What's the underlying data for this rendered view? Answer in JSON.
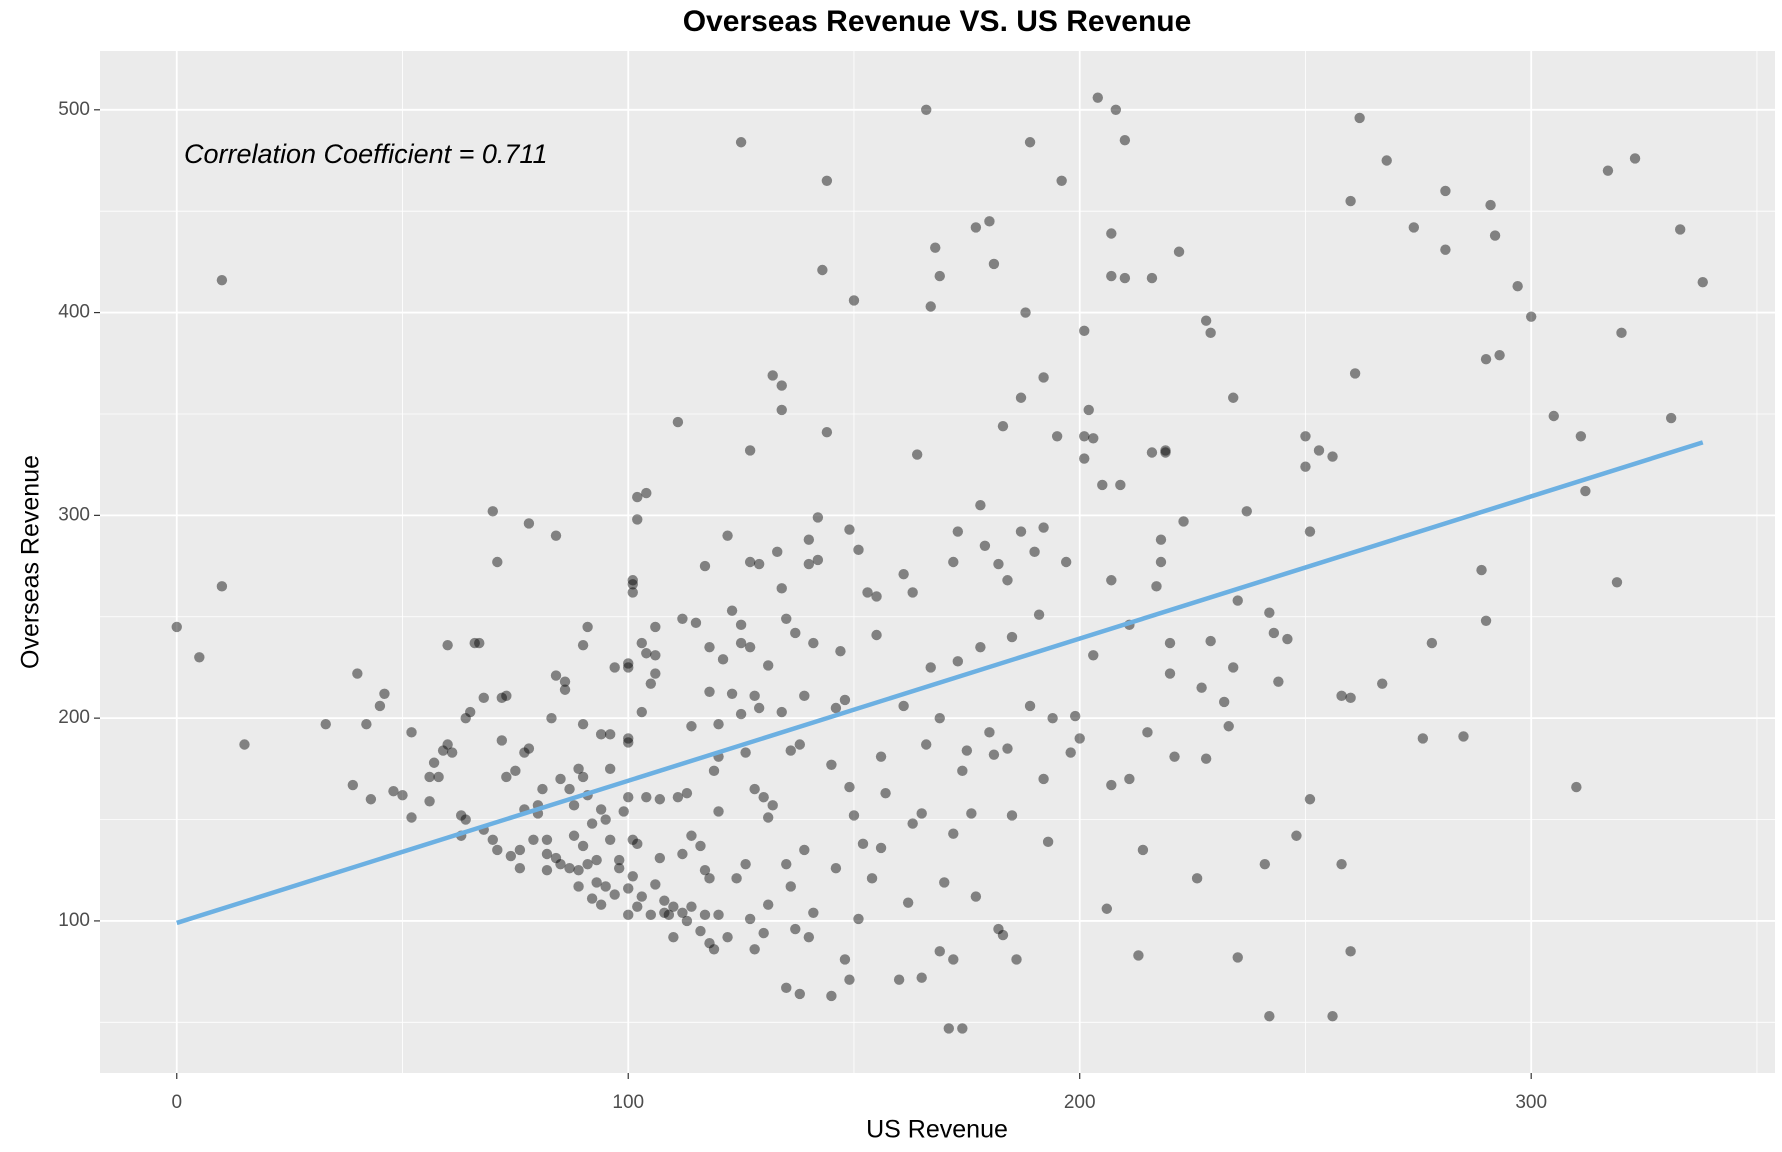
{
  "chart_data": {
    "type": "scatter",
    "title": "Overseas Revenue VS. US Revenue",
    "x_label": "US Revenue",
    "y_label": "Overseas Revenue",
    "annotation": "Correlation Coefficient = 0.711",
    "xlim": [
      -17,
      354
    ],
    "ylim": [
      25,
      529
    ],
    "xticks": [
      0,
      100,
      200,
      300
    ],
    "yticks": [
      100,
      200,
      300,
      400,
      500
    ],
    "grid": true,
    "series": [
      {
        "color": "#000000",
        "opacity": 0.45,
        "x": [
          0,
          5,
          10,
          10,
          15,
          33,
          39,
          40,
          42,
          43,
          45,
          46,
          48,
          50,
          52,
          52,
          56,
          56,
          57,
          58,
          59,
          60,
          60,
          61,
          63,
          63,
          64,
          64,
          65,
          66,
          67,
          68,
          68,
          70,
          70,
          71,
          71,
          72,
          72,
          73,
          73,
          74,
          75,
          76,
          76,
          77,
          77,
          78,
          78,
          79,
          80,
          80,
          81,
          82,
          82,
          82,
          83,
          84,
          84,
          84,
          85,
          85,
          86,
          86,
          87,
          87,
          88,
          88,
          89,
          89,
          89,
          90,
          90,
          90,
          90,
          91,
          91,
          91,
          92,
          92,
          93,
          93,
          94,
          94,
          94,
          95,
          95,
          96,
          96,
          96,
          97,
          97,
          98,
          98,
          99,
          100,
          100,
          100,
          100,
          100,
          100,
          100,
          101,
          101,
          101,
          101,
          101,
          102,
          102,
          102,
          102,
          103,
          103,
          103,
          104,
          104,
          104,
          105,
          105,
          106,
          106,
          106,
          106,
          107,
          107,
          108,
          108,
          109,
          110,
          110,
          111,
          111,
          112,
          112,
          112,
          113,
          113,
          114,
          114,
          114,
          115,
          116,
          116,
          117,
          117,
          117,
          118,
          118,
          118,
          118,
          119,
          119,
          120,
          120,
          120,
          120,
          121,
          122,
          122,
          123,
          123,
          124,
          125,
          125,
          125,
          125,
          126,
          126,
          127,
          127,
          127,
          127,
          128,
          128,
          128,
          129,
          129,
          130,
          130,
          131,
          131,
          131,
          132,
          132,
          133,
          134,
          134,
          134,
          134,
          135,
          135,
          135,
          136,
          136,
          137,
          137,
          138,
          138,
          139,
          139,
          140,
          140,
          140,
          141,
          141,
          142,
          142,
          143,
          144,
          144,
          145,
          145,
          146,
          146,
          147,
          148,
          148,
          149,
          149,
          149,
          150,
          150,
          151,
          151,
          152,
          153,
          154,
          155,
          155,
          156,
          156,
          157,
          160,
          161,
          161,
          162,
          163,
          163,
          164,
          165,
          165,
          166,
          166,
          167,
          167,
          168,
          169,
          169,
          169,
          170,
          171,
          172,
          172,
          172,
          173,
          173,
          174,
          174,
          175,
          176,
          177,
          177,
          178,
          178,
          179,
          180,
          180,
          181,
          181,
          182,
          182,
          183,
          183,
          184,
          184,
          185,
          185,
          186,
          187,
          187,
          188,
          189,
          189,
          190,
          191,
          192,
          192,
          192,
          193,
          194,
          195,
          196,
          197,
          198,
          199,
          200,
          201,
          201,
          201,
          202,
          203,
          203,
          204,
          205,
          206,
          207,
          207,
          207,
          207,
          208,
          209,
          210,
          210,
          211,
          211,
          213,
          214,
          215,
          216,
          216,
          217,
          218,
          218,
          219,
          219,
          220,
          220,
          221,
          222,
          223,
          226,
          227,
          228,
          228,
          229,
          229,
          232,
          233,
          234,
          234,
          235,
          235,
          237,
          241,
          242,
          242,
          243,
          244,
          246,
          248,
          250,
          250,
          251,
          251,
          253,
          256,
          256,
          258,
          258,
          260,
          260,
          260,
          261,
          262,
          267,
          268,
          274,
          276,
          278,
          281,
          281,
          285,
          289,
          290,
          290,
          291,
          292,
          293,
          297,
          300,
          305,
          310,
          311,
          312,
          317,
          319,
          320,
          323,
          331,
          333,
          338
        ],
        "values": [
          245,
          230,
          416,
          265,
          187,
          197,
          167,
          222,
          197,
          160,
          206,
          212,
          164,
          162,
          151,
          193,
          171,
          159,
          178,
          171,
          184,
          236,
          187,
          183,
          152,
          142,
          150,
          200,
          203,
          237,
          237,
          210,
          145,
          302,
          140,
          277,
          135,
          210,
          189,
          171,
          211,
          132,
          174,
          126,
          135,
          155,
          183,
          185,
          296,
          140,
          157,
          153,
          165,
          140,
          133,
          125,
          200,
          131,
          290,
          221,
          170,
          128,
          214,
          218,
          165,
          126,
          157,
          142,
          175,
          117,
          125,
          197,
          236,
          171,
          137,
          245,
          162,
          128,
          148,
          111,
          130,
          119,
          192,
          155,
          108,
          150,
          117,
          192,
          175,
          140,
          225,
          113,
          130,
          126,
          154,
          227,
          225,
          190,
          188,
          161,
          103,
          116,
          268,
          266,
          262,
          140,
          122,
          309,
          298,
          138,
          107,
          237,
          203,
          112,
          232,
          311,
          161,
          217,
          103,
          245,
          231,
          222,
          118,
          160,
          131,
          104,
          110,
          103,
          92,
          107,
          346,
          161,
          249,
          104,
          133,
          163,
          100,
          196,
          142,
          107,
          247,
          137,
          95,
          275,
          125,
          103,
          235,
          213,
          121,
          89,
          174,
          86,
          197,
          181,
          154,
          103,
          229,
          290,
          92,
          253,
          212,
          121,
          484,
          246,
          237,
          202,
          183,
          128,
          332,
          277,
          235,
          101,
          211,
          165,
          86,
          276,
          205,
          94,
          161,
          226,
          151,
          108,
          369,
          157,
          282,
          364,
          352,
          264,
          203,
          249,
          128,
          67,
          184,
          117,
          242,
          96,
          187,
          64,
          211,
          135,
          288,
          276,
          92,
          237,
          104,
          278,
          299,
          421,
          341,
          465,
          177,
          63,
          205,
          126,
          233,
          209,
          81,
          293,
          166,
          71,
          406,
          152,
          283,
          101,
          138,
          262,
          121,
          260,
          241,
          181,
          136,
          163,
          71,
          271,
          206,
          109,
          262,
          148,
          330,
          72,
          153,
          187,
          500,
          403,
          225,
          432,
          200,
          418,
          85,
          119,
          47,
          277,
          143,
          81,
          292,
          228,
          47,
          174,
          184,
          153,
          112,
          442,
          305,
          235,
          285,
          445,
          193,
          424,
          182,
          276,
          96,
          93,
          344,
          268,
          185,
          240,
          152,
          81,
          292,
          358,
          400,
          484,
          206,
          282,
          251,
          368,
          294,
          170,
          139,
          200,
          339,
          465,
          277,
          183,
          201,
          190,
          339,
          328,
          391,
          352,
          338,
          231,
          506,
          315,
          106,
          439,
          418,
          167,
          268,
          500,
          315,
          485,
          417,
          246,
          170,
          83,
          135,
          193,
          331,
          417,
          265,
          288,
          277,
          332,
          331,
          222,
          237,
          181,
          430,
          297,
          121,
          215,
          396,
          180,
          390,
          238,
          208,
          196,
          358,
          225,
          258,
          82,
          302,
          128,
          252,
          53,
          242,
          218,
          239,
          142,
          339,
          324,
          292,
          160,
          332,
          53,
          329,
          128,
          211,
          455,
          85,
          210,
          370,
          496,
          217,
          475,
          442,
          190,
          237,
          460,
          431,
          191,
          273,
          248,
          377,
          453,
          438,
          379,
          413,
          398,
          349,
          166,
          339,
          312,
          470,
          267,
          390,
          476,
          348,
          441,
          415
        ]
      }
    ],
    "fit": {
      "x": [
        0,
        338
      ],
      "values": [
        99,
        336
      ],
      "color": "#6cb0e2"
    }
  }
}
